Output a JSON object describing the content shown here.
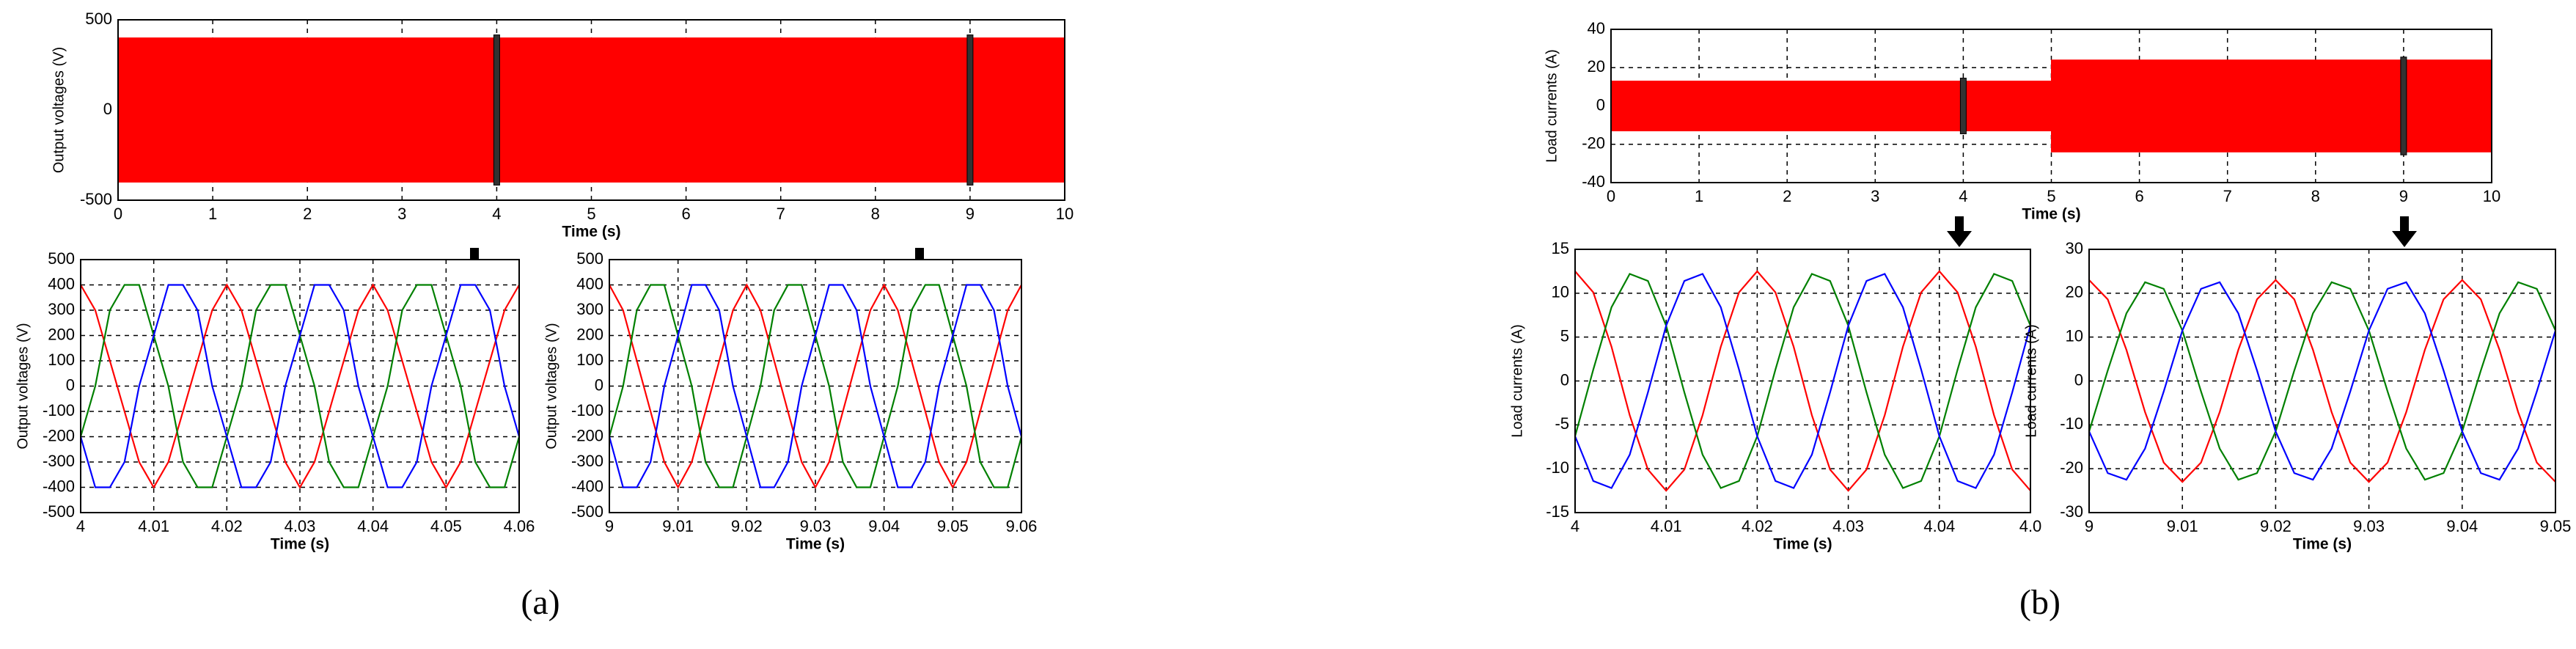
{
  "chart_data": [
    {
      "type": "band",
      "ylabel": "Output voltages (V)",
      "xlabel": "Time (s)",
      "xlim": [
        0,
        10
      ],
      "ylim": [
        -500,
        500
      ],
      "xticks": [
        0,
        1,
        2,
        3,
        4,
        5,
        6,
        7,
        8,
        9,
        10
      ],
      "yticks": [
        -500,
        0,
        500
      ],
      "grid": true,
      "series": [
        {
          "color": "#ff0000",
          "x": [
            0,
            10
          ],
          "high": [
            400,
            400
          ],
          "low": [
            -400,
            -400
          ]
        }
      ],
      "markers": [
        4,
        9
      ]
    },
    {
      "type": "line",
      "ylabel": "Output voltages (V)",
      "xlabel": "Time (s)",
      "xlim": [
        4,
        4.06
      ],
      "ylim": [
        -500,
        500
      ],
      "xticks": [
        4,
        4.01,
        4.02,
        4.03,
        4.04,
        4.05,
        4.06
      ],
      "yticks": [
        -500,
        -400,
        -300,
        -200,
        -100,
        0,
        100,
        200,
        300,
        400,
        500
      ],
      "grid": true,
      "x": [
        4,
        4.002,
        4.004,
        4.006,
        4.008,
        4.01,
        4.012,
        4.014,
        4.016,
        4.018,
        4.02,
        4.022,
        4.024,
        4.026,
        4.028,
        4.03,
        4.032,
        4.034,
        4.036,
        4.038,
        4.04,
        4.042,
        4.044,
        4.046,
        4.048,
        4.05,
        4.052,
        4.054,
        4.056,
        4.058,
        4.06
      ],
      "series": [
        {
          "color": "#ff0000",
          "values": [
            400,
            300,
            100,
            -100,
            -300,
            -400,
            -300,
            -100,
            100,
            300,
            400,
            300,
            100,
            -100,
            -300,
            -400,
            -300,
            -100,
            100,
            300,
            400,
            300,
            100,
            -100,
            -300,
            -400,
            -300,
            -100,
            100,
            300,
            400
          ]
        },
        {
          "color": "#008000",
          "values": [
            -200,
            0,
            300,
            400,
            400,
            200,
            0,
            -300,
            -400,
            -400,
            -200,
            0,
            300,
            400,
            400,
            200,
            0,
            -300,
            -400,
            -400,
            -200,
            0,
            300,
            400,
            400,
            200,
            0,
            -300,
            -400,
            -400,
            -200
          ]
        },
        {
          "color": "#0000ff",
          "values": [
            -200,
            -400,
            -400,
            -300,
            0,
            200,
            400,
            400,
            300,
            0,
            -200,
            -400,
            -400,
            -300,
            0,
            200,
            400,
            400,
            300,
            0,
            -200,
            -400,
            -400,
            -300,
            0,
            200,
            400,
            400,
            300,
            0,
            -200
          ]
        }
      ]
    },
    {
      "type": "line",
      "ylabel": "Output voltages (V)",
      "xlabel": "Time (s)",
      "xlim": [
        9,
        9.06
      ],
      "ylim": [
        -500,
        500
      ],
      "xticks": [
        9,
        9.01,
        9.02,
        9.03,
        9.04,
        9.05,
        9.06
      ],
      "yticks": [
        -500,
        -400,
        -300,
        -200,
        -100,
        0,
        100,
        200,
        300,
        400,
        500
      ],
      "grid": true,
      "x": [
        9,
        9.002,
        9.004,
        9.006,
        9.008,
        9.01,
        9.012,
        9.014,
        9.016,
        9.018,
        9.02,
        9.022,
        9.024,
        9.026,
        9.028,
        9.03,
        9.032,
        9.034,
        9.036,
        9.038,
        9.04,
        9.042,
        9.044,
        9.046,
        9.048,
        9.05,
        9.052,
        9.054,
        9.056,
        9.058,
        9.06
      ],
      "series": [
        {
          "color": "#ff0000",
          "values": [
            400,
            300,
            100,
            -100,
            -300,
            -400,
            -300,
            -100,
            100,
            300,
            400,
            300,
            100,
            -100,
            -300,
            -400,
            -300,
            -100,
            100,
            300,
            400,
            300,
            100,
            -100,
            -300,
            -400,
            -300,
            -100,
            100,
            300,
            400
          ]
        },
        {
          "color": "#008000",
          "values": [
            -200,
            0,
            300,
            400,
            400,
            200,
            0,
            -300,
            -400,
            -400,
            -200,
            0,
            300,
            400,
            400,
            200,
            0,
            -300,
            -400,
            -400,
            -200,
            0,
            300,
            400,
            400,
            200,
            0,
            -300,
            -400,
            -400,
            -200
          ]
        },
        {
          "color": "#0000ff",
          "values": [
            -200,
            -400,
            -400,
            -300,
            0,
            200,
            400,
            400,
            300,
            0,
            -200,
            -400,
            -400,
            -300,
            0,
            200,
            400,
            400,
            300,
            0,
            -200,
            -400,
            -400,
            -300,
            0,
            200,
            400,
            400,
            300,
            0,
            -200
          ]
        }
      ]
    },
    {
      "type": "band",
      "ylabel": "Load currents (A)",
      "xlabel": "Time (s)",
      "xlim": [
        0,
        10
      ],
      "ylim": [
        -40,
        40
      ],
      "xticks": [
        0,
        1,
        2,
        3,
        4,
        5,
        6,
        7,
        8,
        9,
        10
      ],
      "yticks": [
        -40,
        -20,
        0,
        20,
        40
      ],
      "grid": true,
      "series": [
        {
          "color": "#ff0000",
          "x": [
            0,
            5,
            5,
            10
          ],
          "high": [
            13,
            13,
            24,
            24
          ],
          "low": [
            -13,
            -13,
            -24,
            -24
          ]
        }
      ],
      "markers": [
        4,
        9
      ]
    },
    {
      "type": "line",
      "ylabel": "Load currents (A)",
      "xlabel": "Time (s)",
      "xlim": [
        4,
        4.05
      ],
      "ylim": [
        -15,
        15
      ],
      "xticks": [
        4,
        4.01,
        4.02,
        4.03,
        4.04,
        {
          "value": 4.05,
          "label": "4.0"
        }
      ],
      "yticks": [
        -15,
        -10,
        -5,
        0,
        5,
        10,
        15
      ],
      "grid": true,
      "x": [
        4,
        4.002,
        4.004,
        4.006,
        4.008,
        4.01,
        4.012,
        4.014,
        4.016,
        4.018,
        4.02,
        4.022,
        4.024,
        4.026,
        4.028,
        4.03,
        4.032,
        4.034,
        4.036,
        4.038,
        4.04,
        4.042,
        4.044,
        4.046,
        4.048,
        4.05
      ],
      "series": [
        {
          "color": "#ff0000",
          "values": [
            12.5,
            10.1,
            3.9,
            -3.9,
            -10.1,
            -12.5,
            -10.1,
            -3.9,
            3.9,
            10.1,
            12.5,
            10.1,
            3.9,
            -3.9,
            -10.1,
            -12.5,
            -10.1,
            -3.9,
            3.9,
            10.1,
            12.5,
            10.1,
            3.9,
            -3.9,
            -10.1,
            -12.5
          ]
        },
        {
          "color": "#008000",
          "values": [
            -6.3,
            1.3,
            8.4,
            12.2,
            11.4,
            6.3,
            -1.3,
            -8.4,
            -12.2,
            -11.4,
            -6.3,
            1.3,
            8.4,
            12.2,
            11.4,
            6.3,
            -1.3,
            -8.4,
            -12.2,
            -11.4,
            -6.3,
            1.3,
            8.4,
            12.2,
            11.4,
            6.3
          ]
        },
        {
          "color": "#0000ff",
          "values": [
            -6.3,
            -11.4,
            -12.2,
            -8.4,
            -1.3,
            6.3,
            11.4,
            12.2,
            8.4,
            1.3,
            -6.3,
            -11.4,
            -12.2,
            -8.4,
            -1.3,
            6.3,
            11.4,
            12.2,
            8.4,
            1.3,
            -6.3,
            -11.4,
            -12.2,
            -8.4,
            -1.3,
            6.3
          ]
        }
      ]
    },
    {
      "type": "line",
      "ylabel": "Load currents (A)",
      "xlabel": "Time (s)",
      "xlim": [
        9,
        9.05
      ],
      "ylim": [
        -30,
        30
      ],
      "xticks": [
        9,
        9.01,
        9.02,
        9.03,
        9.04,
        9.05
      ],
      "yticks": [
        -30,
        -20,
        -10,
        0,
        10,
        20,
        30
      ],
      "grid": true,
      "x": [
        9,
        9.002,
        9.004,
        9.006,
        9.008,
        9.01,
        9.012,
        9.014,
        9.016,
        9.018,
        9.02,
        9.022,
        9.024,
        9.026,
        9.028,
        9.03,
        9.032,
        9.034,
        9.036,
        9.038,
        9.04,
        9.042,
        9.044,
        9.046,
        9.048,
        9.05
      ],
      "series": [
        {
          "color": "#ff0000",
          "values": [
            23,
            18.6,
            7.1,
            -7.1,
            -18.6,
            -23,
            -18.6,
            -7.1,
            7.1,
            18.6,
            23,
            18.6,
            7.1,
            -7.1,
            -18.6,
            -23,
            -18.6,
            -7.1,
            7.1,
            18.6,
            23,
            18.6,
            7.1,
            -7.1,
            -18.6,
            -23
          ]
        },
        {
          "color": "#008000",
          "values": [
            -11.5,
            2.4,
            15.4,
            22.5,
            21,
            11.5,
            -2.4,
            -15.4,
            -22.5,
            -21,
            -11.5,
            2.4,
            15.4,
            22.5,
            21,
            11.5,
            -2.4,
            -15.4,
            -22.5,
            -21,
            -11.5,
            2.4,
            15.4,
            22.5,
            21,
            11.5
          ]
        },
        {
          "color": "#0000ff",
          "values": [
            -11.5,
            -21,
            -22.5,
            -15.4,
            -2.4,
            11.5,
            21,
            22.5,
            15.4,
            2.4,
            -11.5,
            -21,
            -22.5,
            -15.4,
            -2.4,
            11.5,
            21,
            22.5,
            15.4,
            2.4,
            -11.5,
            -21,
            -22.5,
            -15.4,
            -2.4,
            11.5
          ]
        }
      ]
    }
  ],
  "captions": [
    "(a)",
    "(b)"
  ]
}
